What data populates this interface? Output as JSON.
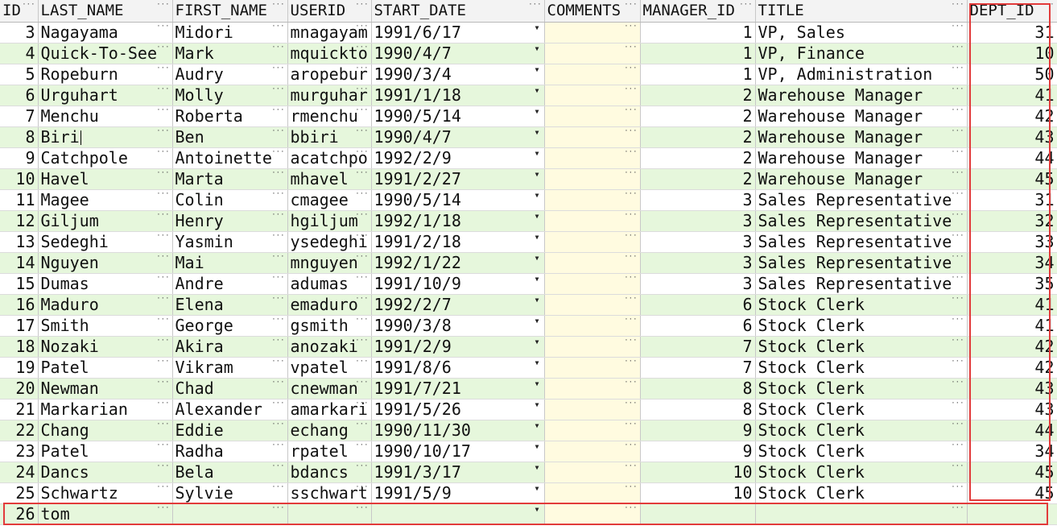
{
  "columns": [
    "ID",
    "LAST_NAME",
    "FIRST_NAME",
    "USERID",
    "START_DATE",
    "COMMENTS",
    "MANAGER_ID",
    "TITLE",
    "DEPT_ID"
  ],
  "rows": [
    [
      "3",
      "Nagayama",
      "Midori",
      "mnagayam",
      "1991/6/17",
      "",
      "1",
      "VP, Sales",
      "31"
    ],
    [
      "4",
      "Quick-To-See",
      "Mark",
      "mquickto",
      "1990/4/7",
      "",
      "1",
      "VP, Finance",
      "10"
    ],
    [
      "5",
      "Ropeburn",
      "Audry",
      "aropebur",
      "1990/3/4",
      "",
      "1",
      "VP, Administration",
      "50"
    ],
    [
      "6",
      "Urguhart",
      "Molly",
      "murguhar",
      "1991/1/18",
      "",
      "2",
      "Warehouse Manager",
      "41"
    ],
    [
      "7",
      "Menchu",
      "Roberta",
      "rmenchu",
      "1990/5/14",
      "",
      "2",
      "Warehouse Manager",
      "42"
    ],
    [
      "8",
      "Biri",
      "Ben",
      "bbiri",
      "1990/4/7",
      "",
      "2",
      "Warehouse Manager",
      "43"
    ],
    [
      "9",
      "Catchpole",
      "Antoinette",
      "acatchpo",
      "1992/2/9",
      "",
      "2",
      "Warehouse Manager",
      "44"
    ],
    [
      "10",
      "Havel",
      "Marta",
      "mhavel",
      "1991/2/27",
      "",
      "2",
      "Warehouse Manager",
      "45"
    ],
    [
      "11",
      "Magee",
      "Colin",
      "cmagee",
      "1990/5/14",
      "",
      "3",
      "Sales Representative",
      "31"
    ],
    [
      "12",
      "Giljum",
      "Henry",
      "hgiljum",
      "1992/1/18",
      "",
      "3",
      "Sales Representative",
      "32"
    ],
    [
      "13",
      "Sedeghi",
      "Yasmin",
      "ysedeghi",
      "1991/2/18",
      "",
      "3",
      "Sales Representative",
      "33"
    ],
    [
      "14",
      "Nguyen",
      "Mai",
      "mnguyen",
      "1992/1/22",
      "",
      "3",
      "Sales Representative",
      "34"
    ],
    [
      "15",
      "Dumas",
      "Andre",
      "adumas",
      "1991/10/9",
      "",
      "3",
      "Sales Representative",
      "35"
    ],
    [
      "16",
      "Maduro",
      "Elena",
      "emaduro",
      "1992/2/7",
      "",
      "6",
      "Stock Clerk",
      "41"
    ],
    [
      "17",
      "Smith",
      "George",
      "gsmith",
      "1990/3/8",
      "",
      "6",
      "Stock Clerk",
      "41"
    ],
    [
      "18",
      "Nozaki",
      "Akira",
      "anozaki",
      "1991/2/9",
      "",
      "7",
      "Stock Clerk",
      "42"
    ],
    [
      "19",
      "Patel",
      "Vikram",
      "vpatel",
      "1991/8/6",
      "",
      "7",
      "Stock Clerk",
      "42"
    ],
    [
      "20",
      "Newman",
      "Chad",
      "cnewman",
      "1991/7/21",
      "",
      "8",
      "Stock Clerk",
      "43"
    ],
    [
      "21",
      "Markarian",
      "Alexander",
      "amarkari",
      "1991/5/26",
      "",
      "8",
      "Stock Clerk",
      "43"
    ],
    [
      "22",
      "Chang",
      "Eddie",
      "echang",
      "1990/11/30",
      "",
      "9",
      "Stock Clerk",
      "44"
    ],
    [
      "23",
      "Patel",
      "Radha",
      "rpatel",
      "1990/10/17",
      "",
      "9",
      "Stock Clerk",
      "34"
    ],
    [
      "24",
      "Dancs",
      "Bela",
      "bdancs",
      "1991/3/17",
      "",
      "10",
      "Stock Clerk",
      "45"
    ],
    [
      "25",
      "Schwartz",
      "Sylvie",
      "sschwart",
      "1991/5/9",
      "",
      "10",
      "Stock Clerk",
      "45"
    ],
    [
      "26",
      "tom",
      "",
      "",
      "",
      "",
      "",
      "",
      ""
    ]
  ],
  "editing_cell": {
    "row": 5,
    "col": 1
  },
  "highlight_color": "#e23b3b",
  "row_colors": {
    "even": "#e6f7dc",
    "odd": "#ffffff"
  }
}
